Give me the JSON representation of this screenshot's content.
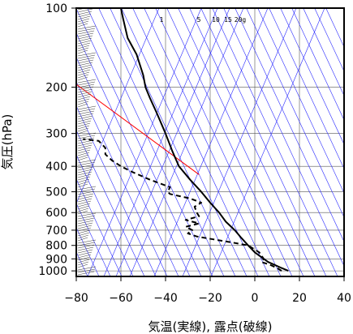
{
  "chart_data": {
    "type": "line",
    "xlabel": "気温(実線), 露点(破線)",
    "ylabel": "気圧(hPa)",
    "x_ticks": [
      "−80",
      "−60",
      "−40",
      "−20",
      "0",
      "20",
      "40"
    ],
    "y_ticks": [
      "100",
      "200",
      "300",
      "400",
      "500",
      "600",
      "700",
      "800",
      "900",
      "1000"
    ],
    "xlim": [
      -80,
      40
    ],
    "ylim_hPa": [
      100,
      1050
    ],
    "y_scale": "log",
    "mixing_ratio_labels": [
      "1",
      "5",
      "10",
      "15",
      "20g"
    ],
    "colors": {
      "temperature": "#000000",
      "dewpoint": "#000000",
      "reference_line": "#ff0000",
      "background_lines": "#2a2aff",
      "grid": "#555555"
    },
    "series": [
      {
        "style": "solid",
        "points": [
          {
            "p": 1000,
            "t": 15
          },
          {
            "p": 975,
            "t": 12
          },
          {
            "p": 950,
            "t": 9
          },
          {
            "p": 925,
            "t": 6
          },
          {
            "p": 900,
            "t": 4
          },
          {
            "p": 850,
            "t": 0
          },
          {
            "p": 800,
            "t": -3
          },
          {
            "p": 750,
            "t": -6
          },
          {
            "p": 700,
            "t": -9
          },
          {
            "p": 650,
            "t": -13
          },
          {
            "p": 600,
            "t": -16
          },
          {
            "p": 550,
            "t": -20
          },
          {
            "p": 500,
            "t": -24
          },
          {
            "p": 450,
            "t": -29
          },
          {
            "p": 400,
            "t": -34
          },
          {
            "p": 350,
            "t": -37
          },
          {
            "p": 300,
            "t": -40
          },
          {
            "p": 250,
            "t": -44
          },
          {
            "p": 220,
            "t": -47
          },
          {
            "p": 200,
            "t": -49
          },
          {
            "p": 180,
            "t": -50
          },
          {
            "p": 150,
            "t": -53
          },
          {
            "p": 130,
            "t": -57
          },
          {
            "p": 110,
            "t": -59
          },
          {
            "p": 100,
            "t": -60
          }
        ]
      },
      {
        "style": "dashed",
        "points": [
          {
            "p": 1000,
            "t": 12
          },
          {
            "p": 975,
            "t": 10
          },
          {
            "p": 950,
            "t": 7
          },
          {
            "p": 925,
            "t": 3
          },
          {
            "p": 900,
            "t": 4
          },
          {
            "p": 850,
            "t": 2
          },
          {
            "p": 800,
            "t": -3
          },
          {
            "p": 780,
            "t": -10
          },
          {
            "p": 760,
            "t": -18
          },
          {
            "p": 740,
            "t": -26
          },
          {
            "p": 720,
            "t": -30
          },
          {
            "p": 700,
            "t": -28
          },
          {
            "p": 680,
            "t": -31
          },
          {
            "p": 660,
            "t": -25
          },
          {
            "p": 640,
            "t": -31
          },
          {
            "p": 620,
            "t": -25
          },
          {
            "p": 600,
            "t": -26
          },
          {
            "p": 570,
            "t": -27
          },
          {
            "p": 550,
            "t": -24
          },
          {
            "p": 530,
            "t": -29
          },
          {
            "p": 510,
            "t": -38
          },
          {
            "p": 500,
            "t": -39
          },
          {
            "p": 480,
            "t": -38
          },
          {
            "p": 450,
            "t": -47
          },
          {
            "p": 420,
            "t": -55
          },
          {
            "p": 400,
            "t": -60
          },
          {
            "p": 380,
            "t": -64
          },
          {
            "p": 360,
            "t": -67
          },
          {
            "p": 340,
            "t": -67
          },
          {
            "p": 320,
            "t": -70
          },
          {
            "p": 315,
            "t": -77
          }
        ]
      }
    ]
  }
}
